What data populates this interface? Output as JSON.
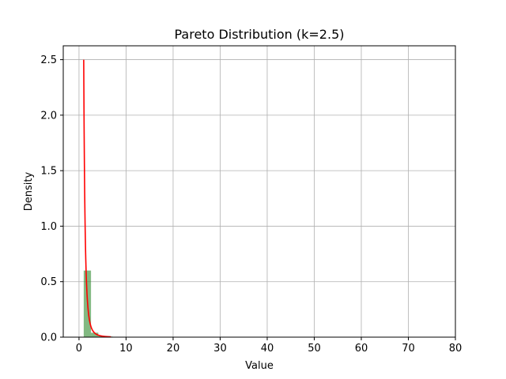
{
  "chart_data": {
    "type": "bar",
    "title": "Pareto Distribution (k=2.5)",
    "xlabel": "Value",
    "ylabel": "Density",
    "xlim": [
      -3.35,
      80
    ],
    "ylim": [
      0,
      2.625
    ],
    "xticks": [
      0,
      10,
      20,
      30,
      40,
      50,
      60,
      70,
      80
    ],
    "xtick_labels": [
      "0",
      "10",
      "20",
      "30",
      "40",
      "50",
      "60",
      "70",
      "80"
    ],
    "yticks": [
      0,
      0.5,
      1.0,
      1.5,
      2.0,
      2.5
    ],
    "ytick_labels": [
      "0.0",
      "0.5",
      "1.0",
      "1.5",
      "2.0",
      "2.5"
    ],
    "grid": true,
    "legend": "none",
    "histogram": {
      "color": "#2e8b2e",
      "opacity": 0.6,
      "bin_width": 1.55,
      "bins": [
        {
          "x0": 1.0,
          "x1": 2.55,
          "density": 0.6
        },
        {
          "x0": 2.55,
          "x1": 4.1,
          "density": 0.04
        },
        {
          "x0": 4.1,
          "x1": 5.65,
          "density": 0.01
        },
        {
          "x0": 5.65,
          "x1": 7.2,
          "density": 0.005
        }
      ]
    },
    "series": [
      {
        "type": "line",
        "color": "#ff0000",
        "function": "pareto_pdf",
        "k": 2.5,
        "x_range": [
          1.0,
          6.8
        ]
      }
    ]
  }
}
